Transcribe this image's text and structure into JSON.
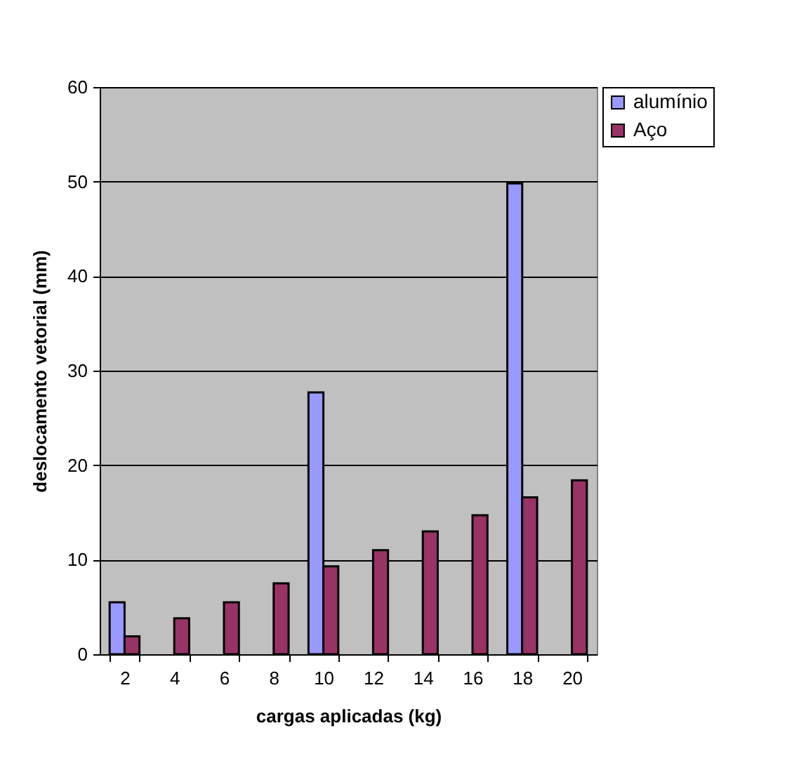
{
  "chart_data": {
    "type": "bar",
    "xlabel": "cargas aplicadas (kg)",
    "ylabel": "deslocamento vetorial (mm)",
    "categories": [
      "2",
      "4",
      "6",
      "8",
      "10",
      "12",
      "14",
      "16",
      "18",
      "20"
    ],
    "series": [
      {
        "name": "alumínio",
        "color": "#9999ff",
        "values": [
          5.5,
          null,
          null,
          null,
          27.7,
          null,
          null,
          null,
          49.8,
          null
        ]
      },
      {
        "name": "Aço",
        "color": "#993366",
        "values": [
          1.9,
          3.8,
          5.5,
          7.5,
          9.3,
          11.0,
          13.0,
          14.7,
          16.6,
          18.4
        ]
      }
    ],
    "ylim": [
      0,
      60
    ],
    "yticks": [
      0,
      10,
      20,
      30,
      40,
      50,
      60
    ],
    "grid": "y",
    "legend": "right"
  }
}
